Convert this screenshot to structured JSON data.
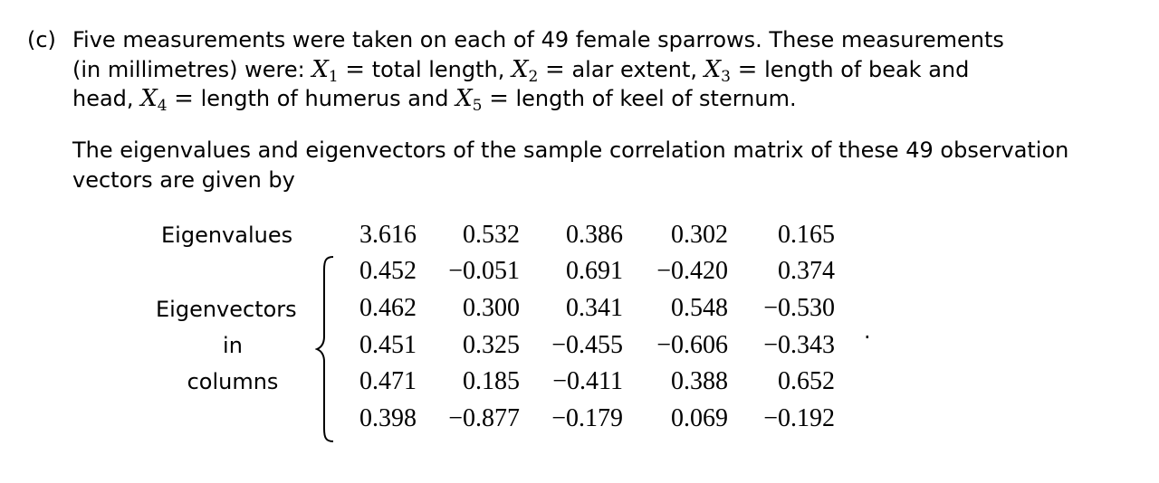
{
  "part_label": "(c)",
  "intro_line1": "Five measurements were taken on each of 49 female sparrows. These measurements",
  "intro_line2_a": "(in millimetres) were:",
  "vars": [
    {
      "sym": "X",
      "sub": "1",
      "eq": "=",
      "desc": "total length,"
    },
    {
      "sym": "X",
      "sub": "2",
      "eq": "=",
      "desc": "alar extent,"
    },
    {
      "sym": "X",
      "sub": "3",
      "eq": "=",
      "desc": "length of beak and"
    },
    {
      "sym": "X",
      "sub": "4",
      "eq": "=",
      "desc": "length of humerus and"
    },
    {
      "sym": "X",
      "sub": "5",
      "eq": "=",
      "desc": "length of keel of sternum."
    }
  ],
  "head_word": "head,",
  "para2": "The eigenvalues and eigenvectors of the sample correlation matrix of these 49 observation vectors are given by",
  "labels": {
    "eigenvalues": "Eigenvalues",
    "eigenvectors": "Eigenvectors",
    "in": "in",
    "columns": "columns"
  },
  "eigenvalues": [
    "3.616",
    "0.532",
    "0.386",
    "0.302",
    "0.165"
  ],
  "eigenvectors": [
    [
      "0.452",
      "−0.051",
      "0.691",
      "−0.420",
      "0.374"
    ],
    [
      "0.462",
      "0.300",
      "0.341",
      "0.548",
      "−0.530"
    ],
    [
      "0.451",
      "0.325",
      "−0.455",
      "−0.606",
      "−0.343"
    ],
    [
      "0.471",
      "0.185",
      "−0.411",
      "0.388",
      "0.652"
    ],
    [
      "0.398",
      "−0.877",
      "−0.179",
      "0.069",
      "−0.192"
    ]
  ],
  "end_period": "."
}
